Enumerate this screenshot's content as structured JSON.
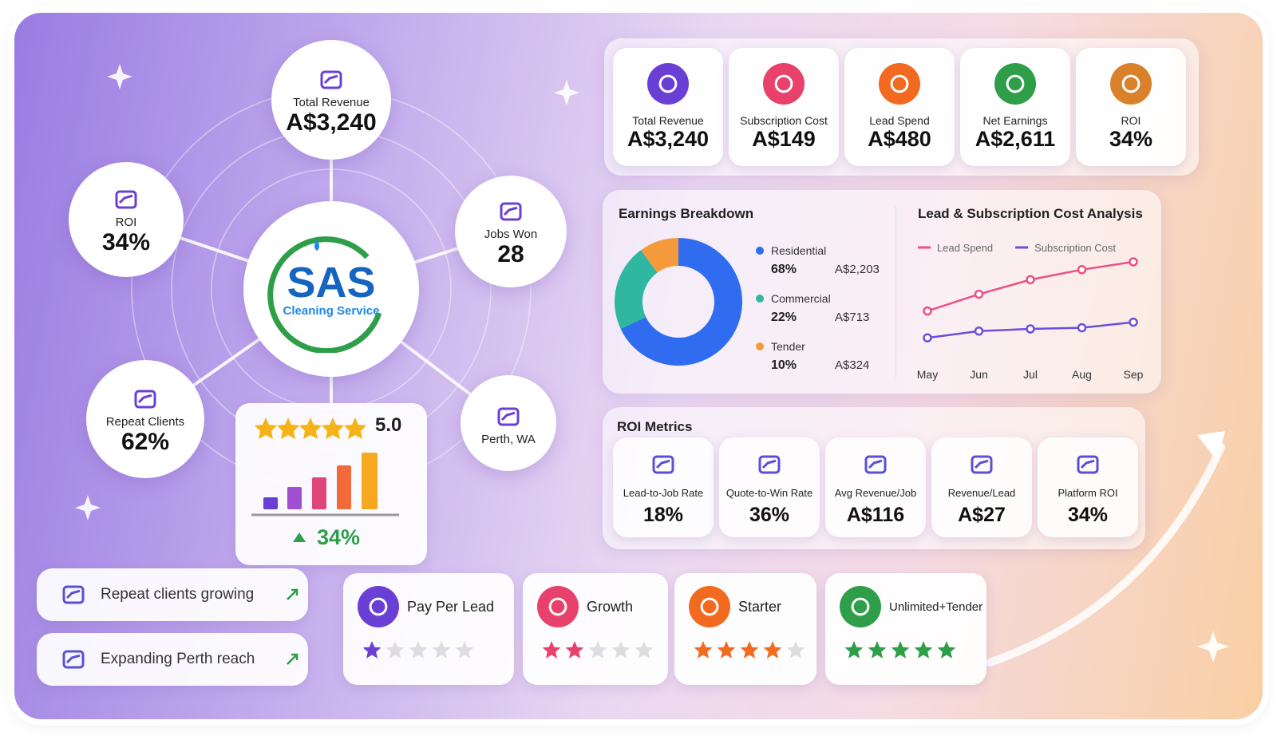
{
  "hub": {
    "logo": {
      "title": "SAS",
      "subtitle": "Cleaning Service"
    },
    "nodes": [
      {
        "label": "Total Revenue",
        "value": "A$3,240"
      },
      {
        "label": "ROI",
        "value": "34%"
      },
      {
        "label": "Jobs Won",
        "value": "28"
      },
      {
        "label": "Repeat Clients",
        "value": "62%"
      },
      {
        "label": "Perth, WA"
      }
    ]
  },
  "rating": {
    "score": "5.0",
    "growth": "34%"
  },
  "kpis": [
    {
      "label": "Total Revenue",
      "value": "A$3,240",
      "color": "#6a3fd6"
    },
    {
      "label": "Subscription Cost",
      "value": "A$149",
      "color": "#e8416b"
    },
    {
      "label": "Lead Spend",
      "value": "A$480",
      "color": "#f26a1f"
    },
    {
      "label": "Net Earnings",
      "value": "A$2,611",
      "color": "#2e9e48"
    },
    {
      "label": "ROI",
      "value": "34%",
      "color": "#d9822b"
    }
  ],
  "chart_data": [
    {
      "type": "pie",
      "title": "Earnings Breakdown",
      "donut": true,
      "categories": [
        "Residential",
        "Commercial",
        "Tender"
      ],
      "values": [
        68,
        22,
        10
      ],
      "value_labels": [
        "68%",
        "22%",
        "10%"
      ],
      "amounts": [
        "A$2,203",
        "A$713",
        "A$324"
      ],
      "colors": [
        "#2f6cf0",
        "#2fb7a2",
        "#f59a3a"
      ]
    },
    {
      "type": "line",
      "title": "Lead & Subscription Cost Analysis",
      "categories": [
        "May",
        "Jun",
        "Jul",
        "Aug",
        "Sep"
      ],
      "ylim": [
        0,
        100
      ],
      "series": [
        {
          "name": "Lead Spend",
          "color": "#ec4f86",
          "values": [
            36,
            51,
            64,
            73,
            80
          ]
        },
        {
          "name": "Subscription Cost",
          "color": "#6a4fe0",
          "values": [
            12,
            18,
            20,
            21,
            26
          ]
        }
      ]
    }
  ],
  "roi_metrics": {
    "title": "ROI Metrics",
    "items": [
      {
        "label": "Lead-to-Job Rate",
        "value": "18%"
      },
      {
        "label": "Quote-to-Win Rate",
        "value": "36%"
      },
      {
        "label": "Avg Revenue/Job",
        "value": "A$116"
      },
      {
        "label": "Revenue/Lead",
        "value": "A$27"
      },
      {
        "label": "Platform ROI",
        "value": "34%"
      }
    ]
  },
  "notes": [
    "Repeat clients growing",
    "Expanding Perth reach"
  ],
  "plans": {
    "rating_max": 5,
    "items": [
      {
        "name": "Pay Per Lead",
        "rating": 1,
        "color": "#6a3fd6"
      },
      {
        "name": "Growth",
        "rating": 2,
        "color": "#e8416b"
      },
      {
        "name": "Starter",
        "rating": 4,
        "color": "#f26a1f"
      },
      {
        "name": "Unlimited+Tender",
        "rating": 5,
        "color": "#2e9e48"
      }
    ]
  }
}
